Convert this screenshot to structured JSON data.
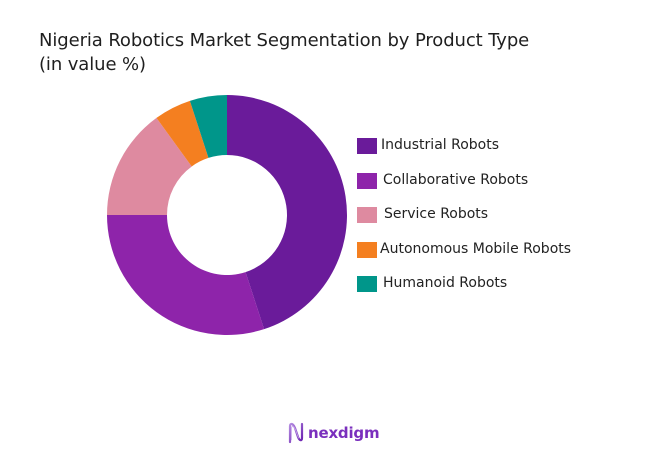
{
  "title": {
    "line1": "Nigeria Robotics Market Segmentation by Product Type",
    "line2": "(in value %)"
  },
  "legend": {
    "items": [
      {
        "label": "Industrial Robots",
        "color": "#6a1b9a"
      },
      {
        "label": "Collaborative Robots",
        "color": "#8e24aa"
      },
      {
        "label": "Service Robots",
        "color": "#de8aa0"
      },
      {
        "label": "Autonomous Mobile Robots",
        "color": "#f47f20"
      },
      {
        "label": "Humanoid Robots",
        "color": "#00968a"
      }
    ]
  },
  "logo": {
    "text": "nexdigm",
    "icon": "nexdigm-wave-n-icon",
    "color": "#7a2fbd"
  },
  "chart_data": {
    "type": "pie",
    "variant": "donut",
    "title": "Nigeria Robotics Market Segmentation by Product Type (in value %)",
    "categories": [
      "Industrial Robots",
      "Collaborative Robots",
      "Service Robots",
      "Autonomous Mobile Robots",
      "Humanoid Robots"
    ],
    "values": [
      45,
      30,
      15,
      5,
      5
    ],
    "colors": [
      "#6a1b9a",
      "#8e24aa",
      "#de8aa0",
      "#f47f20",
      "#00968a"
    ],
    "start_angle_deg": 0,
    "direction": "clockwise",
    "inner_radius_ratio": 0.5,
    "data_labels": false,
    "legend_position": "right"
  }
}
